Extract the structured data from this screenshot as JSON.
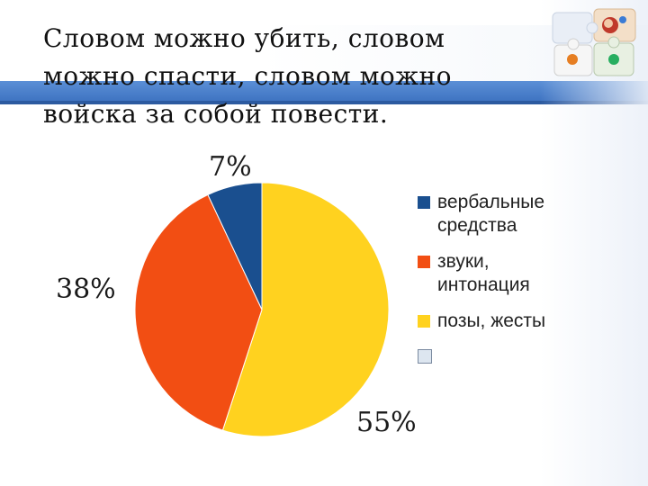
{
  "slide": {
    "title_lines": [
      "Словом можно убить, словом",
      "можно спасти, словом можно",
      "войска за собой повести."
    ]
  },
  "chart_data": {
    "type": "pie",
    "title": "",
    "slices": [
      {
        "label": "вербальные средства",
        "value": 7,
        "display": "7%",
        "color": "#1a4f8f"
      },
      {
        "label": "звуки, интонация",
        "value": 38,
        "display": "38%",
        "color": "#f24e13"
      },
      {
        "label": "позы, жесты",
        "value": 55,
        "display": "55%",
        "color": "#ffd21f"
      }
    ],
    "legend": {
      "placement": "right",
      "entries": [
        "вербальные\nсредства",
        "звуки,\nинтонация",
        "позы, жесты",
        ""
      ]
    }
  },
  "icons": {
    "puzzle": "puzzle-icon",
    "empty_legend_marker": "empty-legend-swatch-icon"
  }
}
